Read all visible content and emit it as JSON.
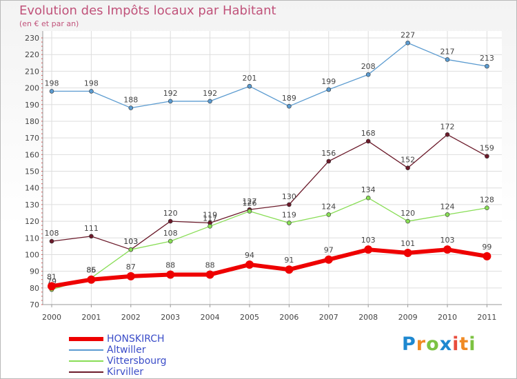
{
  "header": {
    "title": "Evolution des Impôts locaux par Habitant",
    "subtitle": "(en € et par an)"
  },
  "logo": {
    "text": "Proxiti",
    "colors": [
      "#1e88d0",
      "#f08a24",
      "#7cc242",
      "#1e88d0",
      "#e84c3d",
      "#f08a24",
      "#7cc242"
    ]
  },
  "chart_data": {
    "type": "line",
    "x": [
      "2000",
      "2001",
      "2002",
      "2003",
      "2004",
      "2005",
      "2006",
      "2007",
      "2008",
      "2009",
      "2010",
      "2011"
    ],
    "ylim": [
      70,
      230
    ],
    "yticks": [
      70,
      80,
      90,
      100,
      110,
      120,
      130,
      140,
      150,
      160,
      170,
      180,
      190,
      200,
      210,
      220,
      230
    ],
    "grid": true,
    "legend_position": "bottom-left",
    "series": [
      {
        "name": "Altwiller",
        "color": "#5b9bd0",
        "values": [
          198,
          198,
          188,
          192,
          192,
          201,
          189,
          199,
          208,
          227,
          217,
          213
        ]
      },
      {
        "name": "Kirviller",
        "color": "#6b1a2a",
        "values": [
          108,
          111,
          103,
          120,
          119,
          127,
          130,
          156,
          168,
          152,
          172,
          159
        ]
      },
      {
        "name": "Vittersbourg",
        "color": "#88dd55",
        "values": [
          79,
          86,
          103,
          108,
          117,
          126,
          119,
          124,
          134,
          120,
          124,
          128
        ]
      },
      {
        "name": "HONSKIRCH",
        "color": "#ee0000",
        "values": [
          81,
          85,
          87,
          88,
          88,
          94,
          91,
          97,
          103,
          101,
          103,
          99
        ]
      }
    ],
    "legend": [
      "HONSKIRCH",
      "Altwiller",
      "Vittersbourg",
      "Kirviller"
    ]
  }
}
